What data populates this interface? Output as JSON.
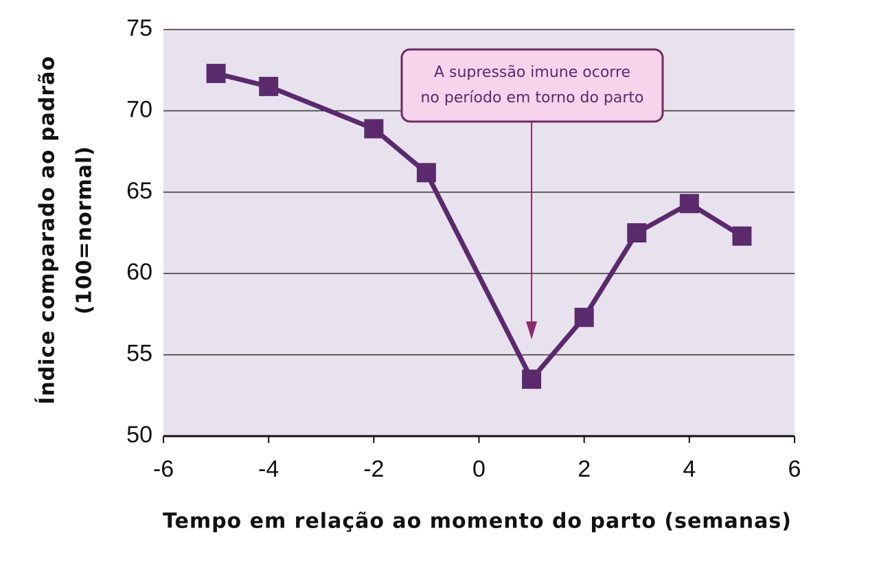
{
  "chart_data": {
    "type": "line",
    "x_label": "Tempo em relação ao momento do parto (semanas)",
    "y_label": [
      "Índice comparado ao padrão",
      "(100=normal)"
    ],
    "annotation": [
      "A supressão imune ocorre",
      "no período em torno do parto"
    ],
    "x": [
      -5,
      -4,
      -2,
      -1,
      1,
      2,
      3,
      4,
      5
    ],
    "values": [
      72.3,
      71.5,
      68.9,
      66.2,
      53.5,
      57.3,
      62.5,
      64.3,
      62.3
    ],
    "color": "#5a2a6c",
    "xlim": [
      -6,
      6
    ],
    "xticks": [
      -6,
      -4,
      -2,
      0,
      2,
      4,
      6
    ],
    "ylim": [
      50,
      75
    ],
    "yticks": [
      50,
      55,
      60,
      65,
      70,
      75
    ],
    "grid": true
  }
}
